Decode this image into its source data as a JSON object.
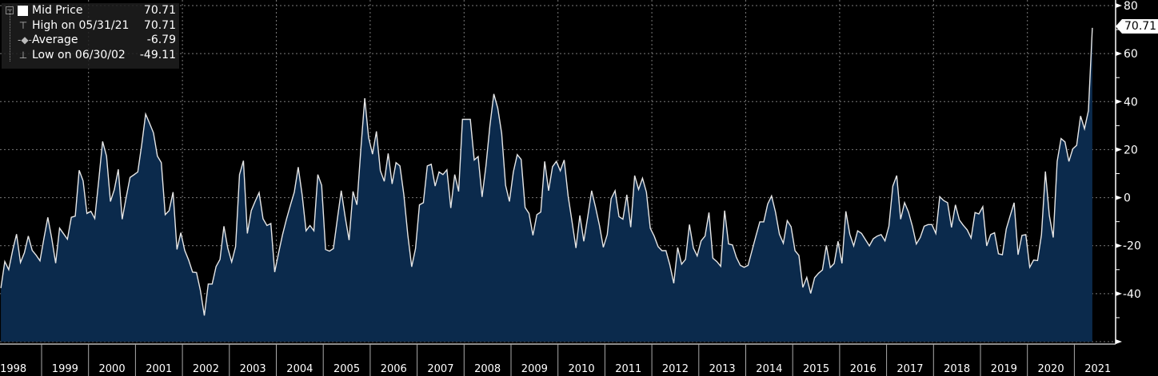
{
  "legend": {
    "series_label": "Mid Price",
    "series_value": "70.71",
    "high_label": "High on 05/31/21",
    "high_value": "70.71",
    "average_label": "Average",
    "average_value": "-6.79",
    "low_label": "Low on 06/30/02",
    "low_value": "-49.11",
    "icons": [
      "square-swatch-icon",
      "high-marker-icon",
      "average-marker-icon",
      "low-marker-icon",
      "collapse-icon"
    ]
  },
  "last_value_label": "70.71",
  "colors": {
    "background": "#000000",
    "fill": "#0b2a4c",
    "line": "#e6e6e6",
    "grid": "#7a7a7a",
    "axis": "#ffffff"
  },
  "chart_data": {
    "type": "area",
    "y_axis_position": "right",
    "ylim": [
      -60,
      80
    ],
    "yticks": [
      80,
      60,
      40,
      20,
      0,
      -20,
      -40
    ],
    "ytick_labels": [
      "80",
      "60",
      "40",
      "20",
      "0",
      "-20",
      "-40"
    ],
    "xlim": [
      "1998-01",
      "2021-12"
    ],
    "xtick_labels": [
      "1998",
      "1999",
      "2000",
      "2001",
      "2002",
      "2003",
      "2004",
      "2005",
      "2006",
      "2007",
      "2008",
      "2009",
      "2010",
      "2011",
      "2012",
      "2013",
      "2014",
      "2015",
      "2016",
      "2017",
      "2018",
      "2019",
      "2020",
      "2021"
    ],
    "grid": true,
    "legend_position": "top-left",
    "series": [
      {
        "name": "Mid Price",
        "points": [
          [
            "1998-02",
            -37.7
          ],
          [
            "1998-03",
            -26.6
          ],
          [
            "1998-04",
            -30
          ],
          [
            "1998-05",
            -22
          ],
          [
            "1998-06",
            -15.2
          ],
          [
            "1998-07",
            -27
          ],
          [
            "1998-08",
            -23
          ],
          [
            "1998-09",
            -16
          ],
          [
            "1998-10",
            -22
          ],
          [
            "1998-11",
            -24
          ],
          [
            "1998-12",
            -26.3
          ],
          [
            "1999-01",
            -17
          ],
          [
            "1999-02",
            -8.2
          ],
          [
            "1999-03",
            -17
          ],
          [
            "1999-04",
            -27.3
          ],
          [
            "1999-05",
            -12.7
          ],
          [
            "1999-06",
            -15
          ],
          [
            "1999-07",
            -17.3
          ],
          [
            "1999-08",
            -8.2
          ],
          [
            "1999-09",
            -7.7
          ],
          [
            "1999-10",
            11.4
          ],
          [
            "1999-11",
            7
          ],
          [
            "1999-12",
            -6.6
          ],
          [
            "2000-01",
            -5.7
          ],
          [
            "2000-02",
            -8.7
          ],
          [
            "2000-03",
            7
          ],
          [
            "2000-04",
            23.4
          ],
          [
            "2000-05",
            17.3
          ],
          [
            "2000-06",
            -1.6
          ],
          [
            "2000-07",
            3.4
          ],
          [
            "2000-08",
            11.8
          ],
          [
            "2000-09",
            -9
          ],
          [
            "2000-10",
            0
          ],
          [
            "2000-11",
            8.4
          ],
          [
            "2000-12",
            9.5
          ],
          [
            "2001-01",
            10.7
          ],
          [
            "2001-02",
            22
          ],
          [
            "2001-03",
            34.8
          ],
          [
            "2001-04",
            31
          ],
          [
            "2001-05",
            27
          ],
          [
            "2001-06",
            17.3
          ],
          [
            "2001-07",
            14.6
          ],
          [
            "2001-08",
            -7.1
          ],
          [
            "2001-09",
            -5.4
          ],
          [
            "2001-10",
            2.3
          ],
          [
            "2001-11",
            -21.6
          ],
          [
            "2001-12",
            -14.6
          ],
          [
            "2002-01",
            -22
          ],
          [
            "2002-02",
            -26
          ],
          [
            "2002-03",
            -31
          ],
          [
            "2002-04",
            -31.2
          ],
          [
            "2002-05",
            -38.7
          ],
          [
            "2002-06",
            -49.11
          ],
          [
            "2002-07",
            -36
          ],
          [
            "2002-08",
            -36
          ],
          [
            "2002-09",
            -28.7
          ],
          [
            "2002-10",
            -25.7
          ],
          [
            "2002-11",
            -11.9
          ],
          [
            "2002-12",
            -21
          ],
          [
            "2003-01",
            -26.8
          ],
          [
            "2003-02",
            -20.4
          ],
          [
            "2003-03",
            9.6
          ],
          [
            "2003-04",
            15.4
          ],
          [
            "2003-05",
            -14.9
          ],
          [
            "2003-06",
            -5.4
          ],
          [
            "2003-07",
            -1.5
          ],
          [
            "2003-08",
            2.1
          ],
          [
            "2003-09",
            -8.8
          ],
          [
            "2003-10",
            -11.6
          ],
          [
            "2003-11",
            -10.8
          ],
          [
            "2003-12",
            -31
          ],
          [
            "2004-01",
            -23
          ],
          [
            "2004-02",
            -15.4
          ],
          [
            "2004-03",
            -9
          ],
          [
            "2004-04",
            -3.2
          ],
          [
            "2004-05",
            2.3
          ],
          [
            "2004-06",
            12.7
          ],
          [
            "2004-07",
            1.2
          ],
          [
            "2004-08",
            -13.8
          ],
          [
            "2004-09",
            -11.6
          ],
          [
            "2004-10",
            -13.8
          ],
          [
            "2004-11",
            9.6
          ],
          [
            "2004-12",
            5.1
          ],
          [
            "2005-01",
            -21.6
          ],
          [
            "2005-02",
            -22.3
          ],
          [
            "2005-03",
            -21.2
          ],
          [
            "2005-04",
            -9
          ],
          [
            "2005-05",
            2.9
          ],
          [
            "2005-06",
            -8
          ],
          [
            "2005-07",
            -17.7
          ],
          [
            "2005-08",
            2.6
          ],
          [
            "2005-09",
            -3
          ],
          [
            "2005-10",
            20.1
          ],
          [
            "2005-11",
            41.4
          ],
          [
            "2005-12",
            25.1
          ],
          [
            "2006-01",
            18.1
          ],
          [
            "2006-02",
            27.6
          ],
          [
            "2006-03",
            11.2
          ],
          [
            "2006-04",
            6.8
          ],
          [
            "2006-05",
            18.4
          ],
          [
            "2006-06",
            5.7
          ],
          [
            "2006-07",
            14.6
          ],
          [
            "2006-08",
            13.2
          ],
          [
            "2006-09",
            1.2
          ],
          [
            "2006-10",
            -15.4
          ],
          [
            "2006-11",
            -28.8
          ],
          [
            "2006-12",
            -21.2
          ],
          [
            "2007-01",
            -3
          ],
          [
            "2007-02",
            -2.1
          ],
          [
            "2007-03",
            13.2
          ],
          [
            "2007-04",
            13.9
          ],
          [
            "2007-05",
            4.8
          ],
          [
            "2007-06",
            10.7
          ],
          [
            "2007-07",
            9.6
          ],
          [
            "2007-08",
            11.6
          ],
          [
            "2007-09",
            -4.3
          ],
          [
            "2007-10",
            9.6
          ],
          [
            "2007-11",
            2.6
          ],
          [
            "2007-12",
            32.6
          ],
          [
            "2008-01",
            32.6
          ],
          [
            "2008-02",
            32.6
          ],
          [
            "2008-03",
            15.7
          ],
          [
            "2008-04",
            17.1
          ],
          [
            "2008-05",
            0.3
          ],
          [
            "2008-06",
            13.4
          ],
          [
            "2008-07",
            30
          ],
          [
            "2008-08",
            43.2
          ],
          [
            "2008-09",
            37.3
          ],
          [
            "2008-10",
            26.8
          ],
          [
            "2008-11",
            5.1
          ],
          [
            "2008-12",
            -1.6
          ],
          [
            "2009-01",
            10.7
          ],
          [
            "2009-02",
            17.9
          ],
          [
            "2009-03",
            15.9
          ],
          [
            "2009-04",
            -4.1
          ],
          [
            "2009-05",
            -6.6
          ],
          [
            "2009-06",
            -15.7
          ],
          [
            "2009-07",
            -7.1
          ],
          [
            "2009-08",
            -6
          ],
          [
            "2009-09",
            15.1
          ],
          [
            "2009-10",
            2.9
          ],
          [
            "2009-11",
            12.9
          ],
          [
            "2009-12",
            15.1
          ],
          [
            "2010-01",
            11.2
          ],
          [
            "2010-02",
            15.7
          ],
          [
            "2010-03",
            0.7
          ],
          [
            "2010-04",
            -10
          ],
          [
            "2010-05",
            -21
          ],
          [
            "2010-06",
            -7.4
          ],
          [
            "2010-07",
            -18.2
          ],
          [
            "2010-08",
            -8
          ],
          [
            "2010-09",
            2.9
          ],
          [
            "2010-10",
            -4
          ],
          [
            "2010-11",
            -11.6
          ],
          [
            "2010-12",
            -20.7
          ],
          [
            "2011-01",
            -15.4
          ],
          [
            "2011-02",
            -0.4
          ],
          [
            "2011-03",
            2.9
          ],
          [
            "2011-04",
            -7.9
          ],
          [
            "2011-05",
            -9
          ],
          [
            "2011-06",
            1.2
          ],
          [
            "2011-07",
            -12.3
          ],
          [
            "2011-08",
            9.2
          ],
          [
            "2011-09",
            3.4
          ],
          [
            "2011-10",
            8.1
          ],
          [
            "2011-11",
            2.3
          ],
          [
            "2011-12",
            -12.7
          ],
          [
            "2012-01",
            -16
          ],
          [
            "2012-02",
            -20.4
          ],
          [
            "2012-03",
            -22.1
          ],
          [
            "2012-04",
            -22.1
          ],
          [
            "2012-05",
            -28
          ],
          [
            "2012-06",
            -35.7
          ],
          [
            "2012-07",
            -20.8
          ],
          [
            "2012-08",
            -27.7
          ],
          [
            "2012-09",
            -25.7
          ],
          [
            "2012-10",
            -11.2
          ],
          [
            "2012-11",
            -21
          ],
          [
            "2012-12",
            -24.3
          ],
          [
            "2013-01",
            -18
          ],
          [
            "2013-02",
            -16
          ],
          [
            "2013-03",
            -6.2
          ],
          [
            "2013-04",
            -25.2
          ],
          [
            "2013-05",
            -26.6
          ],
          [
            "2013-06",
            -28.6
          ],
          [
            "2013-07",
            -5.4
          ],
          [
            "2013-08",
            -19.3
          ],
          [
            "2013-09",
            -19.7
          ],
          [
            "2013-10",
            -24.9
          ],
          [
            "2013-11",
            -28.2
          ],
          [
            "2013-12",
            -29
          ],
          [
            "2014-01",
            -28.2
          ],
          [
            "2014-02",
            -22.1
          ],
          [
            "2014-03",
            -16
          ],
          [
            "2014-04",
            -10.1
          ],
          [
            "2014-05",
            -10.1
          ],
          [
            "2014-06",
            -2.7
          ],
          [
            "2014-07",
            0.7
          ],
          [
            "2014-08",
            -6
          ],
          [
            "2014-09",
            -15.2
          ],
          [
            "2014-10",
            -19
          ],
          [
            "2014-11",
            -9.6
          ],
          [
            "2014-12",
            -12.1
          ],
          [
            "2015-01",
            -22.1
          ],
          [
            "2015-02",
            -24.1
          ],
          [
            "2015-03",
            -37.4
          ],
          [
            "2015-04",
            -33.2
          ],
          [
            "2015-05",
            -39.9
          ],
          [
            "2015-06",
            -33.4
          ],
          [
            "2015-07",
            -31.5
          ],
          [
            "2015-08",
            -30.1
          ],
          [
            "2015-09",
            -19.9
          ],
          [
            "2015-10",
            -29.1
          ],
          [
            "2015-11",
            -27.4
          ],
          [
            "2015-12",
            -18.2
          ],
          [
            "2016-01",
            -27.4
          ],
          [
            "2016-02",
            -5.7
          ],
          [
            "2016-03",
            -15.2
          ],
          [
            "2016-04",
            -20.1
          ],
          [
            "2016-05",
            -13.8
          ],
          [
            "2016-06",
            -14.9
          ],
          [
            "2016-07",
            -17.5
          ],
          [
            "2016-08",
            -20.1
          ],
          [
            "2016-09",
            -17.1
          ],
          [
            "2016-10",
            -16
          ],
          [
            "2016-11",
            -15.4
          ],
          [
            "2016-12",
            -18
          ],
          [
            "2017-01",
            -11.9
          ],
          [
            "2017-02",
            4.8
          ],
          [
            "2017-03",
            9.2
          ],
          [
            "2017-04",
            -9
          ],
          [
            "2017-05",
            -2.1
          ],
          [
            "2017-06",
            -6
          ],
          [
            "2017-07",
            -11.9
          ],
          [
            "2017-08",
            -19.3
          ],
          [
            "2017-09",
            -16.6
          ],
          [
            "2017-10",
            -11.9
          ],
          [
            "2017-11",
            -11.2
          ],
          [
            "2017-12",
            -11.2
          ],
          [
            "2018-01",
            -14.9
          ],
          [
            "2018-02",
            0.4
          ],
          [
            "2018-03",
            -1.2
          ],
          [
            "2018-04",
            -2.1
          ],
          [
            "2018-05",
            -12.4
          ],
          [
            "2018-06",
            -3
          ],
          [
            "2018-07",
            -9.3
          ],
          [
            "2018-08",
            -11.5
          ],
          [
            "2018-09",
            -13.4
          ],
          [
            "2018-10",
            -16.8
          ],
          [
            "2018-11",
            -6.2
          ],
          [
            "2018-12",
            -6.8
          ],
          [
            "2019-01",
            -3.8
          ],
          [
            "2019-02",
            -20.1
          ],
          [
            "2019-03",
            -15.4
          ],
          [
            "2019-04",
            -14.6
          ],
          [
            "2019-05",
            -23.4
          ],
          [
            "2019-06",
            -23.8
          ],
          [
            "2019-07",
            -13
          ],
          [
            "2019-08",
            -7.5
          ],
          [
            "2019-09",
            -2.1
          ],
          [
            "2019-10",
            -23.8
          ],
          [
            "2019-11",
            -15.7
          ],
          [
            "2019-12",
            -15.4
          ],
          [
            "2020-01",
            -29
          ],
          [
            "2020-02",
            -26
          ],
          [
            "2020-03",
            -26.2
          ],
          [
            "2020-04",
            -15.4
          ],
          [
            "2020-05",
            10.9
          ],
          [
            "2020-06",
            -7.4
          ],
          [
            "2020-07",
            -16.6
          ],
          [
            "2020-08",
            15.1
          ],
          [
            "2020-09",
            24.6
          ],
          [
            "2020-10",
            23.2
          ],
          [
            "2020-11",
            15.1
          ],
          [
            "2020-12",
            20.3
          ],
          [
            "2021-01",
            21.8
          ],
          [
            "2021-02",
            34
          ],
          [
            "2021-03",
            28.7
          ],
          [
            "2021-04",
            36.2
          ],
          [
            "2021-05",
            70.71
          ]
        ]
      }
    ]
  }
}
